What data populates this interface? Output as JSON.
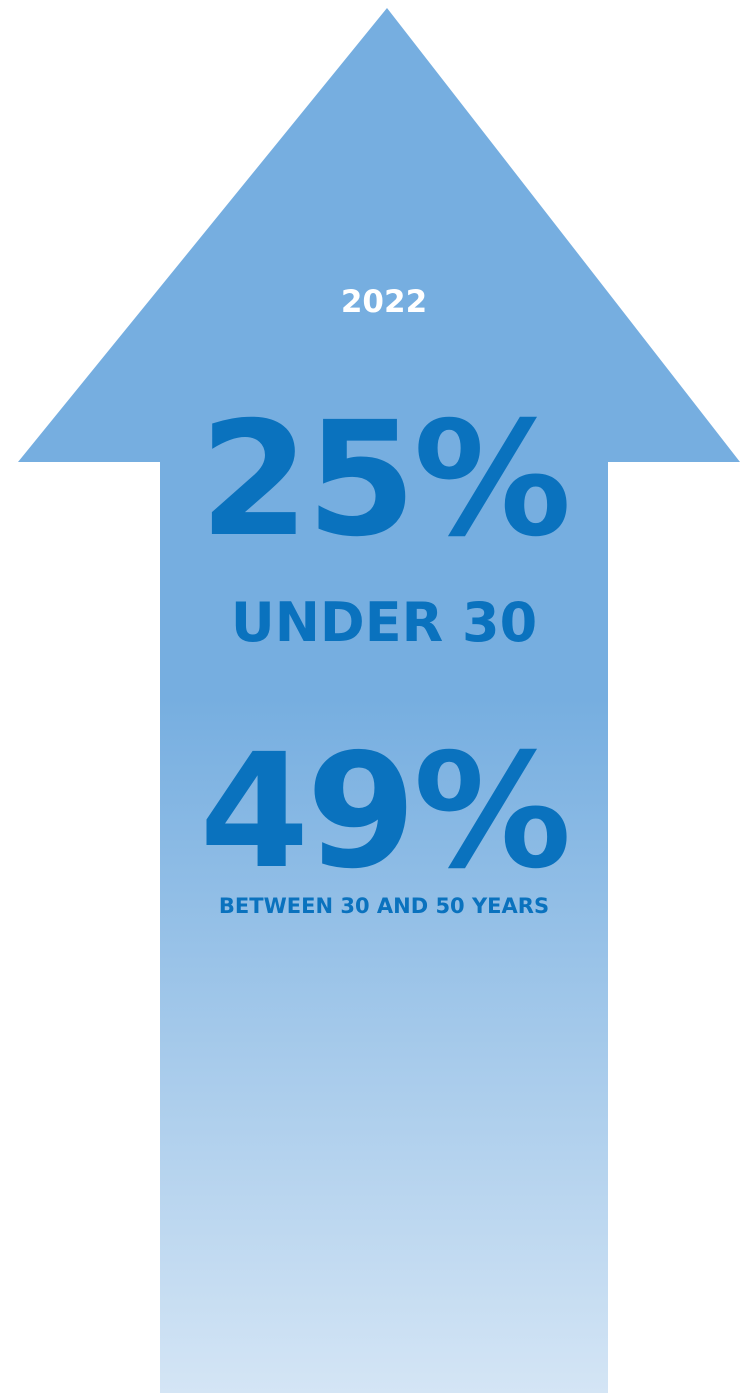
{
  "year": "2022",
  "stats": [
    {
      "value": "25%",
      "label": "UNDER 30"
    },
    {
      "value": "49%",
      "label": "BETWEEN 30 AND 50 YEARS"
    }
  ],
  "colors": {
    "arrow_top": "#76aee0",
    "arrow_bottom": "#d4e5f5",
    "text_primary": "#0a72be",
    "text_year": "#ffffff",
    "background": "#ffffff"
  }
}
